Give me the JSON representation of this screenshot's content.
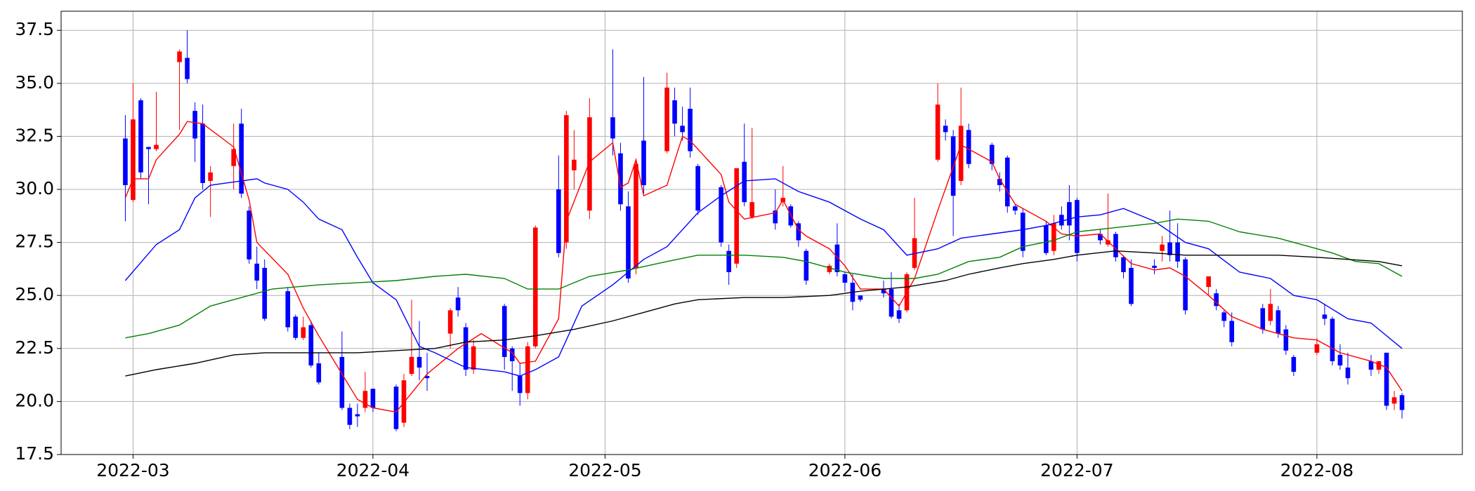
{
  "chart_data": {
    "type": "candlestick",
    "up_color": "#ff0000",
    "down_color": "#0000ff",
    "grid": true,
    "xlim": [
      -8.3,
      172.8
    ],
    "xticks": [
      {
        "value": 1,
        "label": "2022-03"
      },
      {
        "value": 32,
        "label": "2022-04"
      },
      {
        "value": 62,
        "label": "2022-05"
      },
      {
        "value": 93,
        "label": "2022-06"
      },
      {
        "value": 123,
        "label": "2022-07"
      },
      {
        "value": 154,
        "label": "2022-08"
      }
    ],
    "ylim": [
      17.5,
      38.4
    ],
    "yticks": [
      17.5,
      {
        "value": 20,
        "label": "20.0"
      },
      22.5,
      {
        "value": 25,
        "label": "25.0"
      },
      27.5,
      {
        "value": 30,
        "label": "30.0"
      },
      32.5,
      {
        "value": 35,
        "label": "35.0"
      },
      37.5
    ],
    "x": [
      0,
      1,
      2,
      3,
      4,
      7,
      8,
      9,
      10,
      11,
      14,
      15,
      16,
      17,
      18,
      21,
      22,
      23,
      24,
      25,
      28,
      29,
      30,
      31,
      32,
      35,
      36,
      37,
      38,
      39,
      42,
      43,
      44,
      45,
      49,
      50,
      51,
      52,
      53,
      56,
      57,
      58,
      60,
      63,
      64,
      65,
      66,
      67,
      70,
      71,
      72,
      73,
      74,
      77,
      78,
      79,
      80,
      81,
      84,
      85,
      86,
      87,
      88,
      91,
      92,
      93,
      94,
      95,
      98,
      99,
      100,
      101,
      102,
      105,
      106,
      107,
      108,
      109,
      112,
      113,
      114,
      115,
      116,
      119,
      120,
      121,
      122,
      123,
      126,
      127,
      128,
      129,
      130,
      133,
      134,
      135,
      136,
      137,
      140,
      141,
      142,
      143,
      147,
      148,
      149,
      150,
      151,
      154,
      155,
      156,
      157,
      158,
      161,
      162,
      163,
      164,
      165
    ],
    "open": [
      32.4,
      29.5,
      34.2,
      32.0,
      31.9,
      36.0,
      36.2,
      33.7,
      33.1,
      30.4,
      31.1,
      33.1,
      29.0,
      26.5,
      26.3,
      25.2,
      24.0,
      23.0,
      23.6,
      21.8,
      22.1,
      19.7,
      19.4,
      19.7,
      20.6,
      20.7,
      19.0,
      21.3,
      22.1,
      21.2,
      23.2,
      24.9,
      23.5,
      21.5,
      24.5,
      22.5,
      21.2,
      20.4,
      22.6,
      30.0,
      27.5,
      30.9,
      29.0,
      33.4,
      31.7,
      29.2,
      26.3,
      32.3,
      31.8,
      34.2,
      33.0,
      33.8,
      31.1,
      30.1,
      27.1,
      26.5,
      31.3,
      28.7,
      29.0,
      29.4,
      29.2,
      28.4,
      27.1,
      26.1,
      27.4,
      26.0,
      25.6,
      25.0,
      25.3,
      25.3,
      24.3,
      24.3,
      26.3,
      31.4,
      33.0,
      32.5,
      30.4,
      32.8,
      32.1,
      30.5,
      31.5,
      29.2,
      28.9,
      28.3,
      27.1,
      28.8,
      29.4,
      29.5,
      27.9,
      27.4,
      27.9,
      26.8,
      26.3,
      26.4,
      27.1,
      27.5,
      27.5,
      26.7,
      25.4,
      25.1,
      24.2,
      23.8,
      24.4,
      23.8,
      24.3,
      23.4,
      22.1,
      22.3,
      24.1,
      23.9,
      22.2,
      21.6,
      21.9,
      21.5,
      22.3,
      19.9,
      20.3
    ],
    "high": [
      33.5,
      35.0,
      34.3,
      32.0,
      34.6,
      36.6,
      37.5,
      34.1,
      34.0,
      31.1,
      33.1,
      33.8,
      29.2,
      27.3,
      26.7,
      25.4,
      24.1,
      24.0,
      23.8,
      22.3,
      23.3,
      19.9,
      19.9,
      21.4,
      20.6,
      20.8,
      21.3,
      24.8,
      23.8,
      22.3,
      24.4,
      25.4,
      23.7,
      22.9,
      24.6,
      22.6,
      21.8,
      22.8,
      28.3,
      31.6,
      33.7,
      32.8,
      34.3,
      36.6,
      32.2,
      29.9,
      31.3,
      35.3,
      35.5,
      34.8,
      33.9,
      34.8,
      31.2,
      30.2,
      27.4,
      31.0,
      33.1,
      32.9,
      30.0,
      31.1,
      29.3,
      28.5,
      27.2,
      26.5,
      28.4,
      26.1,
      26.0,
      25.0,
      25.7,
      26.1,
      24.6,
      26.1,
      29.6,
      35.0,
      33.3,
      32.8,
      34.8,
      33.1,
      32.2,
      30.8,
      31.6,
      29.3,
      29.1,
      28.5,
      28.8,
      29.2,
      30.2,
      29.6,
      28.1,
      29.8,
      28.0,
      26.9,
      26.7,
      26.7,
      27.8,
      29.0,
      28.4,
      26.8,
      25.9,
      25.3,
      24.3,
      24.2,
      24.6,
      25.3,
      24.5,
      23.6,
      22.2,
      23.0,
      24.6,
      24.0,
      22.7,
      22.3,
      22.2,
      21.9,
      22.3,
      20.5,
      20.4
    ],
    "low": [
      28.5,
      29.4,
      30.5,
      29.3,
      31.8,
      32.8,
      35.0,
      31.3,
      30.0,
      28.7,
      30.0,
      29.6,
      26.5,
      25.3,
      23.8,
      23.3,
      22.9,
      22.9,
      21.6,
      20.8,
      19.6,
      18.7,
      18.8,
      19.5,
      19.5,
      18.6,
      18.8,
      21.2,
      21.0,
      20.5,
      22.5,
      24.0,
      21.2,
      21.3,
      21.5,
      20.5,
      19.8,
      20.1,
      22.5,
      26.8,
      27.2,
      30.0,
      28.6,
      31.6,
      29.0,
      25.6,
      26.0,
      29.8,
      31.7,
      32.5,
      32.3,
      31.5,
      28.8,
      27.3,
      25.5,
      26.3,
      29.2,
      28.6,
      28.1,
      29.2,
      28.2,
      27.3,
      25.5,
      26.0,
      25.9,
      25.2,
      24.3,
      24.7,
      24.9,
      23.9,
      23.7,
      24.2,
      26.2,
      31.3,
      32.3,
      27.8,
      30.2,
      31.0,
      30.9,
      29.9,
      28.9,
      28.8,
      26.8,
      26.9,
      26.9,
      28.1,
      27.6,
      26.6,
      27.4,
      27.3,
      26.6,
      25.8,
      24.5,
      26.0,
      26.6,
      26.6,
      26.3,
      24.1,
      25.0,
      24.3,
      23.5,
      22.6,
      23.2,
      23.6,
      23.0,
      22.2,
      21.2,
      22.2,
      23.6,
      21.7,
      21.5,
      20.8,
      21.2,
      21.3,
      19.6,
      19.6,
      19.2
    ],
    "close": [
      30.2,
      33.3,
      30.8,
      31.9,
      32.1,
      36.5,
      35.2,
      32.4,
      30.3,
      30.8,
      31.9,
      29.8,
      26.7,
      25.7,
      23.9,
      23.5,
      23.0,
      23.5,
      21.7,
      20.9,
      19.7,
      18.9,
      19.3,
      20.5,
      19.7,
      18.7,
      21.0,
      22.1,
      21.6,
      21.1,
      24.3,
      24.3,
      21.5,
      22.6,
      22.1,
      21.9,
      20.4,
      22.6,
      28.2,
      27.0,
      33.5,
      31.4,
      33.4,
      32.4,
      29.3,
      25.8,
      31.2,
      30.2,
      34.8,
      33.1,
      32.7,
      31.8,
      29.0,
      27.5,
      26.1,
      31.0,
      29.4,
      29.4,
      28.4,
      29.6,
      28.3,
      27.6,
      25.7,
      26.4,
      26.1,
      25.6,
      24.7,
      24.8,
      25.1,
      24.0,
      23.9,
      26.0,
      27.7,
      34.0,
      32.7,
      29.7,
      33.0,
      31.2,
      31.2,
      30.2,
      29.2,
      29.0,
      27.1,
      27.0,
      28.4,
      28.3,
      28.3,
      27.0,
      27.6,
      27.6,
      26.8,
      26.1,
      24.6,
      26.3,
      27.4,
      26.9,
      26.6,
      24.3,
      25.9,
      24.5,
      23.8,
      22.8,
      23.4,
      24.6,
      23.2,
      22.4,
      21.4,
      22.7,
      23.9,
      21.9,
      21.7,
      21.1,
      21.5,
      21.9,
      19.8,
      20.2,
      19.6
    ],
    "lines": [
      {
        "color": "#ff0000",
        "x": [
          0,
          1,
          3,
          4,
          7,
          8,
          10,
          14,
          16,
          17,
          21,
          23,
          25,
          28,
          30,
          32,
          35,
          37,
          39,
          43,
          46,
          50,
          51,
          53,
          56,
          57,
          60,
          63,
          64,
          65,
          66,
          67,
          70,
          72,
          73,
          77,
          78,
          80,
          84,
          85,
          87,
          88,
          91,
          93,
          95,
          98,
          100,
          102,
          105,
          108,
          112,
          113,
          115,
          119,
          121,
          123,
          126,
          128,
          130,
          133,
          135,
          137,
          140,
          143,
          147,
          149,
          151,
          154,
          157,
          161,
          163,
          165
        ],
        "values": [
          29.6,
          30.5,
          30.5,
          31.4,
          32.6,
          33.2,
          33.1,
          32.0,
          29.5,
          27.5,
          26.0,
          24.4,
          23.1,
          21.3,
          20.1,
          19.7,
          19.5,
          20.4,
          21.3,
          22.5,
          23.2,
          22.3,
          21.8,
          21.9,
          23.9,
          28.5,
          31.3,
          32.2,
          30.1,
          30.3,
          31.4,
          29.7,
          30.2,
          32.5,
          32.3,
          30.7,
          29.4,
          28.6,
          28.9,
          29.5,
          28.1,
          27.8,
          27.2,
          26.4,
          25.3,
          25.3,
          24.5,
          25.8,
          29.0,
          32.1,
          31.3,
          30.5,
          29.3,
          28.5,
          27.9,
          27.8,
          27.9,
          27.2,
          26.5,
          26.2,
          26.3,
          25.9,
          25.0,
          24.0,
          23.4,
          23.2,
          23.0,
          22.9,
          22.3,
          21.9,
          21.6,
          20.5
        ]
      },
      {
        "color": "#0000ff",
        "x": [
          0,
          4,
          7,
          9,
          11,
          15,
          17,
          18,
          21,
          23,
          25,
          28,
          30,
          32,
          35,
          38,
          40,
          44,
          49,
          51,
          53,
          56,
          59,
          63,
          67,
          70,
          74,
          77,
          80,
          84,
          87,
          91,
          95,
          98,
          101,
          105,
          108,
          112,
          116,
          119,
          123,
          126,
          129,
          133,
          137,
          140,
          144,
          148,
          151,
          154,
          158,
          161,
          165
        ],
        "values": [
          25.7,
          27.4,
          28.1,
          29.6,
          30.2,
          30.4,
          30.5,
          30.3,
          30.0,
          29.4,
          28.6,
          28.1,
          26.8,
          25.6,
          24.8,
          22.6,
          22.3,
          21.6,
          21.4,
          21.2,
          21.5,
          22.1,
          24.5,
          25.5,
          26.7,
          27.3,
          28.9,
          29.7,
          30.4,
          30.5,
          29.9,
          29.4,
          28.6,
          28.1,
          26.9,
          27.2,
          27.7,
          27.9,
          28.1,
          28.3,
          28.7,
          28.8,
          29.1,
          28.5,
          27.5,
          27.2,
          26.1,
          25.8,
          25.0,
          24.8,
          23.9,
          23.7,
          22.5
        ]
      },
      {
        "color": "#008000",
        "x": [
          0,
          3,
          7,
          11,
          15,
          19,
          25,
          30,
          35,
          40,
          44,
          49,
          52,
          56,
          60,
          65,
          70,
          74,
          80,
          85,
          88,
          93,
          98,
          102,
          105,
          109,
          113,
          116,
          120,
          123,
          128,
          133,
          136,
          140,
          144,
          149,
          152,
          156,
          159,
          162,
          165
        ],
        "values": [
          23.0,
          23.2,
          23.6,
          24.5,
          24.9,
          25.3,
          25.5,
          25.6,
          25.7,
          25.9,
          26.0,
          25.8,
          25.3,
          25.3,
          25.9,
          26.2,
          26.6,
          26.9,
          26.9,
          26.8,
          26.6,
          26.1,
          25.8,
          25.8,
          26.0,
          26.6,
          26.8,
          27.3,
          27.6,
          28.0,
          28.2,
          28.4,
          28.6,
          28.5,
          28.0,
          27.7,
          27.4,
          27.0,
          26.6,
          26.5,
          25.9
        ]
      },
      {
        "color": "#000000",
        "x": [
          0,
          4,
          9,
          14,
          18,
          25,
          30,
          35,
          40,
          44,
          49,
          53,
          58,
          63,
          67,
          71,
          74,
          80,
          85,
          91,
          95,
          101,
          106,
          109,
          113,
          116,
          120,
          123,
          128,
          133,
          137,
          143,
          149,
          154,
          158,
          162,
          165
        ],
        "values": [
          21.2,
          21.5,
          21.8,
          22.2,
          22.3,
          22.3,
          22.3,
          22.4,
          22.5,
          22.8,
          22.9,
          23.1,
          23.4,
          23.8,
          24.2,
          24.6,
          24.8,
          24.9,
          24.9,
          25.0,
          25.2,
          25.4,
          25.7,
          26.0,
          26.3,
          26.5,
          26.7,
          26.9,
          27.1,
          27.0,
          26.9,
          26.9,
          26.9,
          26.8,
          26.7,
          26.6,
          26.4
        ]
      }
    ]
  }
}
